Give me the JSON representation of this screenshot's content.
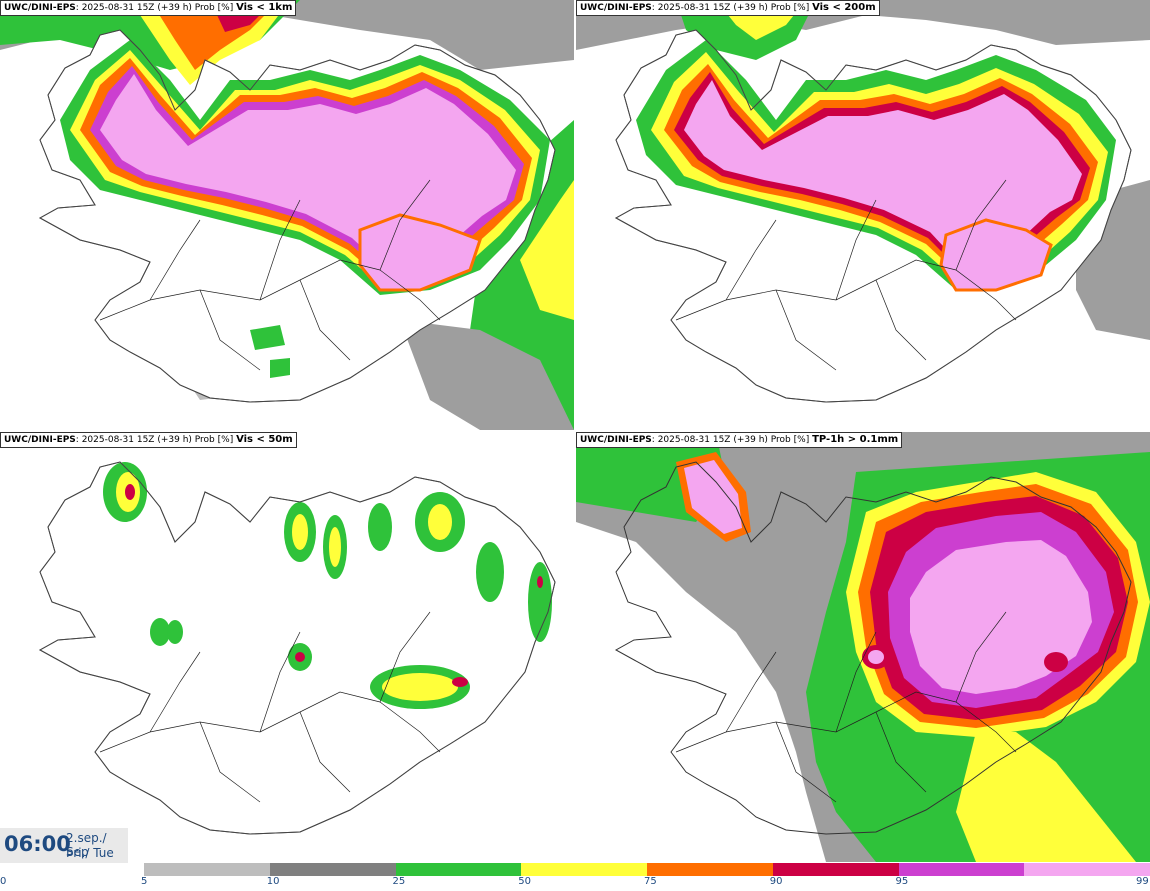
{
  "panels": [
    {
      "model": "UWC/DINI-EPS",
      "run": ": 2025-08-31 15Z (+39 h) Prob [%] ",
      "variable": "Vis < 1km"
    },
    {
      "model": "UWC/DINI-EPS",
      "run": ": 2025-08-31 15Z (+39 h) Prob [%] ",
      "variable": "Vis < 200m"
    },
    {
      "model": "UWC/DINI-EPS",
      "run": ": 2025-08-31 15Z (+39 h) Prob [%] ",
      "variable": "Vis < 50m"
    },
    {
      "model": "UWC/DINI-EPS",
      "run": ": 2025-08-31 15Z (+39 h) Prob [%] ",
      "variable": "TP-1h > 0.1mm"
    }
  ],
  "valid_time": {
    "time": "06:00",
    "date_line1": "2.sep./ Sep",
    "date_line2": "Þri./ Tue"
  },
  "legend": {
    "ticks": [
      "0",
      "5",
      "10",
      "25",
      "50",
      "75",
      "90",
      "95",
      "99"
    ],
    "colors": [
      "#bdbdbd",
      "#7f7f7f",
      "#2fc23a",
      "#ffff3a",
      "#ff6e00",
      "#cc0044",
      "#cc3fd0",
      "#f4a6f0"
    ]
  }
}
